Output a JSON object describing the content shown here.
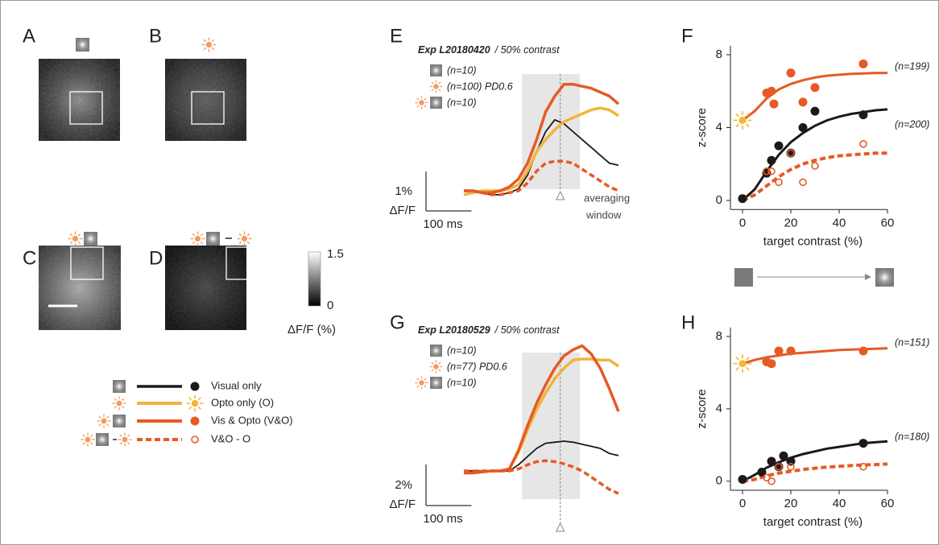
{
  "panel_labels": [
    "A",
    "B",
    "C",
    "D",
    "E",
    "F",
    "G",
    "H"
  ],
  "colorbar": {
    "ticks": [
      1.5,
      0
    ],
    "label": "ΔF/F (%)"
  },
  "legend": [
    "Visual only",
    "Opto only (O)",
    "Vis & Opto (V&O)",
    "V&O - O"
  ],
  "chart_data": [
    {
      "type": "line",
      "title": "Exp L20180420",
      "subtitle": "/ 50% contrast",
      "x": [
        0,
        20,
        40,
        60,
        80,
        100,
        120,
        140,
        160,
        180,
        200,
        220,
        240,
        260,
        280,
        300,
        320,
        340
      ],
      "series": [
        {
          "name": "(n=10)",
          "color": "#1a1a1a",
          "values": [
            0,
            0,
            -0.05,
            -0.1,
            -0.1,
            -0.05,
            0.05,
            0.4,
            1.0,
            1.5,
            1.8,
            1.7,
            1.5,
            1.3,
            1.1,
            0.9,
            0.7,
            0.65
          ]
        },
        {
          "name": "(n=100) PD0.6",
          "color": "#f0b43c",
          "values": [
            -0.1,
            -0.05,
            0,
            0,
            0,
            0.05,
            0.15,
            0.5,
            1.0,
            1.3,
            1.55,
            1.75,
            1.85,
            1.95,
            2.05,
            2.1,
            2.05,
            1.9
          ]
        },
        {
          "name": "(n=10)",
          "color": "#e65a24",
          "values": [
            0,
            0,
            -0.05,
            -0.05,
            0,
            0.1,
            0.3,
            0.7,
            1.3,
            2.0,
            2.4,
            2.7,
            2.7,
            2.65,
            2.6,
            2.5,
            2.4,
            2.2
          ]
        },
        {
          "color": "#e65a24",
          "dash": true,
          "values": [
            0,
            0,
            -0.05,
            -0.1,
            -0.1,
            -0.05,
            0,
            0.2,
            0.5,
            0.7,
            0.75,
            0.75,
            0.7,
            0.55,
            0.4,
            0.25,
            0.1,
            0
          ]
        }
      ],
      "window": [
        128,
        255
      ],
      "marker": 212,
      "annotation": [
        "averaging",
        "window"
      ],
      "scale_bar": {
        "y": {
          "value": 1,
          "label": "1%"
        },
        "y_unit": "ΔF/F",
        "x": {
          "value": 100,
          "label": "100 ms"
        }
      }
    },
    {
      "type": "scatter",
      "xlabel": "target contrast (%)",
      "ylabel": "z-score",
      "xlim": [
        -5,
        60
      ],
      "ylim": [
        -0.5,
        8.5
      ],
      "xticks": [
        0,
        20,
        40,
        60
      ],
      "yticks": [
        0,
        4,
        8
      ],
      "curves": [
        {
          "color": "#e65a24",
          "x": [
            0,
            5,
            10,
            15,
            20,
            25,
            30,
            35,
            40,
            45,
            50,
            55,
            60
          ],
          "values": [
            4.4,
            4.9,
            5.6,
            6.1,
            6.4,
            6.6,
            6.75,
            6.85,
            6.9,
            6.95,
            6.97,
            7.0,
            7.0
          ]
        },
        {
          "color": "#1a1a1a",
          "x": [
            0,
            5,
            10,
            15,
            20,
            25,
            30,
            35,
            40,
            45,
            50,
            55,
            60
          ],
          "values": [
            0,
            0.6,
            1.6,
            2.5,
            3.2,
            3.7,
            4.1,
            4.4,
            4.6,
            4.75,
            4.85,
            4.95,
            5.0
          ]
        },
        {
          "color": "#e65a24",
          "dash": true,
          "x": [
            0,
            5,
            10,
            15,
            20,
            25,
            30,
            35,
            40,
            45,
            50,
            55,
            60
          ],
          "values": [
            0,
            0.3,
            0.8,
            1.3,
            1.7,
            2.0,
            2.2,
            2.35,
            2.45,
            2.5,
            2.55,
            2.6,
            2.6
          ]
        }
      ],
      "series": [
        {
          "color": "#e65a24",
          "marker": "filled",
          "x": [
            10,
            12,
            13,
            20,
            25,
            30,
            50
          ],
          "values": [
            5.9,
            6.0,
            5.3,
            7.0,
            5.4,
            6.2,
            7.5
          ]
        },
        {
          "color": "#f7b733",
          "marker": "sun",
          "x": [
            0
          ],
          "values": [
            4.4
          ]
        },
        {
          "color": "#1a1a1a",
          "marker": "filled",
          "x": [
            0,
            10,
            12,
            15,
            20,
            25,
            30,
            50
          ],
          "values": [
            0.1,
            1.5,
            2.2,
            3.0,
            2.6,
            4.0,
            4.9,
            4.7
          ]
        },
        {
          "color": "#e65a24",
          "marker": "open",
          "x": [
            10,
            12,
            15,
            20,
            25,
            30,
            50
          ],
          "values": [
            1.6,
            1.6,
            1.0,
            2.6,
            1.0,
            1.9,
            3.1
          ]
        }
      ],
      "annotations": [
        "(n=199)",
        "(n=200)"
      ]
    },
    {
      "type": "line",
      "title": "Exp L20180529",
      "subtitle": "/ 50% contrast",
      "x": [
        0,
        20,
        40,
        60,
        80,
        100,
        120,
        140,
        160,
        180,
        200,
        220,
        240,
        260,
        280,
        300,
        320,
        340
      ],
      "series": [
        {
          "name": "(n=10)",
          "color": "#1a1a1a",
          "values": [
            0,
            0,
            0,
            0,
            0,
            0,
            0.3,
            0.7,
            1.1,
            1.35,
            1.4,
            1.45,
            1.4,
            1.3,
            1.2,
            1.1,
            0.85,
            0.75
          ]
        },
        {
          "name": "(n=77) PD0.6",
          "color": "#f0b43c",
          "values": [
            -0.1,
            -0.1,
            -0.05,
            0,
            0,
            0.1,
            0.9,
            2.0,
            3.0,
            3.8,
            4.5,
            5.0,
            5.4,
            5.45,
            5.45,
            5.4,
            5.4,
            5.1
          ]
        },
        {
          "name": "(n=10)",
          "color": "#e65a24",
          "values": [
            -0.1,
            -0.1,
            -0.05,
            0,
            0,
            0.1,
            1.0,
            2.2,
            3.3,
            4.2,
            5.0,
            5.6,
            5.9,
            6.1,
            5.7,
            5.0,
            4.0,
            2.9
          ]
        },
        {
          "color": "#e65a24",
          "dash": true,
          "values": [
            0,
            0,
            0,
            0,
            0,
            0,
            0.1,
            0.3,
            0.45,
            0.5,
            0.45,
            0.35,
            0.2,
            0,
            -0.3,
            -0.6,
            -0.9,
            -1.1
          ]
        }
      ],
      "window": [
        128,
        255
      ],
      "marker": 212,
      "scale_bar": {
        "y": {
          "value": 2,
          "label": "2%"
        },
        "y_unit": "ΔF/F",
        "x": {
          "value": 100,
          "label": "100 ms"
        }
      }
    },
    {
      "type": "scatter",
      "xlabel": "target contrast (%)",
      "ylabel": "z-score",
      "xlim": [
        -5,
        60
      ],
      "ylim": [
        -0.5,
        8.5
      ],
      "xticks": [
        0,
        20,
        40,
        60
      ],
      "yticks": [
        0,
        4,
        8
      ],
      "curves": [
        {
          "color": "#e65a24",
          "x": [
            0,
            5,
            10,
            15,
            20,
            25,
            30,
            35,
            40,
            45,
            50,
            55,
            60
          ],
          "values": [
            6.5,
            6.7,
            6.85,
            6.95,
            7.05,
            7.1,
            7.15,
            7.2,
            7.25,
            7.28,
            7.3,
            7.32,
            7.35
          ]
        },
        {
          "color": "#1a1a1a",
          "x": [
            0,
            5,
            10,
            15,
            20,
            25,
            30,
            35,
            40,
            45,
            50,
            55,
            60
          ],
          "values": [
            0,
            0.35,
            0.75,
            1.05,
            1.3,
            1.5,
            1.65,
            1.8,
            1.9,
            2.0,
            2.1,
            2.15,
            2.2
          ]
        },
        {
          "color": "#e65a24",
          "dash": true,
          "x": [
            0,
            5,
            10,
            15,
            20,
            25,
            30,
            35,
            40,
            45,
            50,
            55,
            60
          ],
          "values": [
            0,
            0.1,
            0.3,
            0.45,
            0.55,
            0.65,
            0.72,
            0.78,
            0.82,
            0.86,
            0.9,
            0.92,
            0.95
          ]
        }
      ],
      "series": [
        {
          "color": "#e65a24",
          "marker": "filled",
          "x": [
            10,
            12,
            15,
            20,
            50
          ],
          "values": [
            6.6,
            6.5,
            7.2,
            7.2,
            7.2
          ]
        },
        {
          "color": "#f7b733",
          "marker": "sun",
          "x": [
            0
          ],
          "values": [
            6.5
          ]
        },
        {
          "color": "#1a1a1a",
          "marker": "filled",
          "x": [
            0,
            8,
            12,
            15,
            17,
            20,
            50
          ],
          "values": [
            0.1,
            0.5,
            1.1,
            0.8,
            1.4,
            1.1,
            2.1
          ]
        },
        {
          "color": "#e65a24",
          "marker": "open",
          "x": [
            10,
            12,
            15,
            20,
            50
          ],
          "values": [
            0.2,
            0.0,
            0.8,
            0.8,
            0.8
          ]
        }
      ],
      "annotations": [
        "(n=151)",
        "(n=180)"
      ]
    }
  ]
}
